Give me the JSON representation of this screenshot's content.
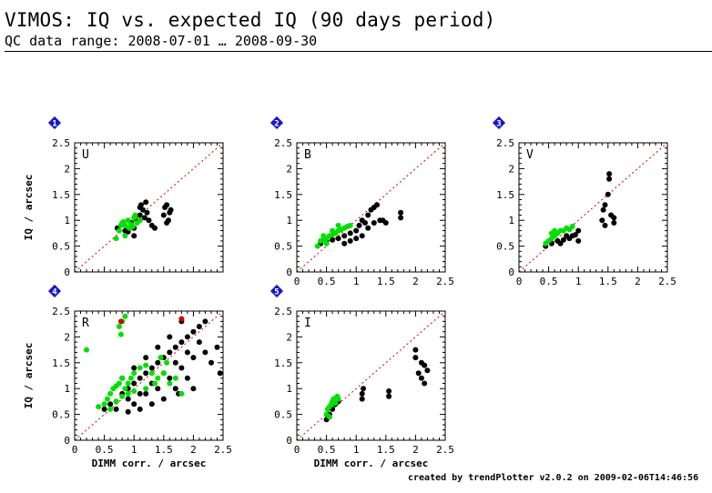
{
  "header": {
    "title": "VIMOS: IQ vs. expected IQ (90 days period)",
    "subtitle": "QC data range: 2008-07-01 … 2008-09-30"
  },
  "footer": "created by trendPlotter v2.0.2 on 2009-02-06T14:46:56",
  "colors": {
    "accent": "#00e000",
    "series_black": "#000000",
    "marker": "#1818c8",
    "reference": "#d00000"
  },
  "chart_data": [
    {
      "type": "scatter",
      "index": "1",
      "filter": "U",
      "xlabel": "",
      "ylabel": "IQ / arcsec",
      "xlim": [
        0,
        2.5
      ],
      "ylim": [
        0,
        2.5
      ],
      "xticks": [],
      "yticks": [
        "0",
        "0.5",
        "1",
        "1.5",
        "2",
        "2.5"
      ],
      "reference_line": "y = x",
      "series": [
        {
          "color": "#000000",
          "points": [
            [
              0.72,
              0.85
            ],
            [
              0.8,
              0.92
            ],
            [
              0.85,
              0.8
            ],
            [
              0.95,
              0.95
            ],
            [
              1.0,
              0.7
            ],
            [
              1.05,
              0.98
            ],
            [
              1.1,
              1.1
            ],
            [
              1.12,
              1.3
            ],
            [
              1.15,
              1.2
            ],
            [
              1.18,
              1.05
            ],
            [
              1.2,
              1.35
            ],
            [
              1.22,
              1.15
            ],
            [
              1.25,
              1.0
            ],
            [
              1.3,
              0.9
            ],
            [
              1.35,
              0.85
            ],
            [
              1.5,
              1.1
            ],
            [
              1.52,
              1.25
            ],
            [
              1.55,
              1.3
            ],
            [
              1.58,
              1.0
            ],
            [
              1.6,
              1.15
            ],
            [
              1.62,
              1.2
            ],
            [
              1.55,
              0.95
            ],
            [
              1.0,
              0.85
            ],
            [
              0.9,
              0.78
            ],
            [
              1.1,
              1.25
            ]
          ]
        },
        {
          "color": "#00e000",
          "points": [
            [
              0.75,
              0.8
            ],
            [
              0.78,
              0.9
            ],
            [
              0.8,
              0.95
            ],
            [
              0.85,
              0.9
            ],
            [
              0.9,
              1.0
            ],
            [
              0.92,
              0.85
            ],
            [
              0.95,
              0.92
            ],
            [
              1.0,
              1.05
            ],
            [
              1.05,
              0.95
            ],
            [
              1.1,
              1.0
            ],
            [
              0.85,
              0.7
            ],
            [
              0.7,
              0.65
            ],
            [
              0.82,
              0.97
            ],
            [
              0.98,
              0.88
            ],
            [
              1.02,
              1.1
            ]
          ]
        }
      ]
    },
    {
      "type": "scatter",
      "index": "2",
      "filter": "B",
      "xlabel": "",
      "ylabel": "",
      "xlim": [
        0,
        2.5
      ],
      "ylim": [
        0,
        2.5
      ],
      "xticks": [
        "0",
        "0.5",
        "1",
        "1.5",
        "2",
        "2.5"
      ],
      "yticks": [
        "0",
        "0.5",
        "1",
        "1.5",
        "2",
        "2.5"
      ],
      "reference_line": "y = x",
      "series": [
        {
          "color": "#000000",
          "points": [
            [
              0.4,
              0.55
            ],
            [
              0.5,
              0.6
            ],
            [
              0.6,
              0.62
            ],
            [
              0.7,
              0.65
            ],
            [
              0.8,
              0.7
            ],
            [
              0.9,
              0.75
            ],
            [
              1.0,
              0.8
            ],
            [
              1.05,
              0.9
            ],
            [
              1.1,
              1.0
            ],
            [
              1.15,
              0.95
            ],
            [
              1.2,
              1.1
            ],
            [
              1.25,
              1.2
            ],
            [
              1.3,
              1.25
            ],
            [
              1.35,
              1.3
            ],
            [
              1.2,
              0.85
            ],
            [
              1.3,
              0.95
            ],
            [
              1.4,
              1.0
            ],
            [
              1.1,
              0.7
            ],
            [
              1.0,
              0.65
            ],
            [
              0.9,
              0.6
            ],
            [
              1.75,
              1.05
            ],
            [
              1.75,
              1.15
            ],
            [
              1.45,
              1.0
            ],
            [
              1.5,
              0.95
            ],
            [
              0.8,
              0.55
            ]
          ]
        },
        {
          "color": "#00e000",
          "points": [
            [
              0.35,
              0.5
            ],
            [
              0.4,
              0.6
            ],
            [
              0.45,
              0.62
            ],
            [
              0.5,
              0.65
            ],
            [
              0.55,
              0.7
            ],
            [
              0.6,
              0.72
            ],
            [
              0.65,
              0.75
            ],
            [
              0.7,
              0.8
            ],
            [
              0.75,
              0.82
            ],
            [
              0.8,
              0.85
            ],
            [
              0.85,
              0.88
            ],
            [
              0.9,
              0.9
            ],
            [
              0.5,
              0.55
            ],
            [
              0.6,
              0.8
            ],
            [
              0.7,
              0.9
            ],
            [
              0.45,
              0.7
            ]
          ]
        }
      ]
    },
    {
      "type": "scatter",
      "index": "3",
      "filter": "V",
      "xlabel": "",
      "ylabel": "",
      "xlim": [
        0,
        2.5
      ],
      "ylim": [
        0,
        2.5
      ],
      "xticks": [
        "0",
        "0.5",
        "1",
        "1.5",
        "2",
        "2.5"
      ],
      "yticks": [
        "0",
        "0.5",
        "1",
        "1.5",
        "2",
        "2.5"
      ],
      "reference_line": "y = x",
      "series": [
        {
          "color": "#000000",
          "points": [
            [
              0.45,
              0.5
            ],
            [
              0.55,
              0.55
            ],
            [
              0.65,
              0.6
            ],
            [
              0.75,
              0.62
            ],
            [
              0.85,
              0.65
            ],
            [
              0.9,
              0.7
            ],
            [
              0.95,
              0.72
            ],
            [
              1.0,
              0.8
            ],
            [
              0.8,
              0.7
            ],
            [
              0.7,
              0.55
            ],
            [
              1.4,
              1.0
            ],
            [
              1.42,
              1.2
            ],
            [
              1.45,
              1.3
            ],
            [
              1.5,
              1.5
            ],
            [
              1.52,
              1.8
            ],
            [
              1.52,
              1.9
            ],
            [
              1.55,
              1.1
            ],
            [
              1.6,
              1.05
            ],
            [
              1.6,
              0.95
            ],
            [
              1.45,
              0.9
            ],
            [
              1.0,
              0.6
            ]
          ]
        },
        {
          "color": "#00e000",
          "points": [
            [
              0.45,
              0.55
            ],
            [
              0.5,
              0.6
            ],
            [
              0.55,
              0.65
            ],
            [
              0.6,
              0.7
            ],
            [
              0.65,
              0.75
            ],
            [
              0.7,
              0.8
            ],
            [
              0.75,
              0.8
            ],
            [
              0.8,
              0.85
            ],
            [
              0.85,
              0.82
            ],
            [
              0.9,
              0.88
            ],
            [
              0.55,
              0.75
            ],
            [
              0.6,
              0.8
            ]
          ]
        }
      ]
    },
    {
      "type": "scatter",
      "index": "4",
      "filter": "R",
      "xlabel": "DIMM corr. / arcsec",
      "ylabel": "IQ / arcsec",
      "xlim": [
        0,
        2.5
      ],
      "ylim": [
        0,
        2.5
      ],
      "xticks": [
        "0",
        "0.5",
        "1",
        "1.5",
        "2",
        "2.5"
      ],
      "yticks": [
        "0",
        "0.5",
        "1",
        "1.5",
        "2",
        "2.5"
      ],
      "reference_line": "y = x",
      "series": [
        {
          "color": "#000000",
          "points": [
            [
              0.5,
              0.6
            ],
            [
              0.6,
              0.7
            ],
            [
              0.7,
              0.75
            ],
            [
              0.8,
              0.9
            ],
            [
              0.9,
              1.0
            ],
            [
              1.0,
              1.1
            ],
            [
              1.1,
              1.2
            ],
            [
              1.2,
              1.3
            ],
            [
              1.3,
              1.4
            ],
            [
              1.4,
              1.5
            ],
            [
              1.5,
              1.6
            ],
            [
              1.6,
              1.7
            ],
            [
              1.7,
              1.8
            ],
            [
              1.8,
              1.9
            ],
            [
              1.9,
              2.0
            ],
            [
              2.0,
              2.1
            ],
            [
              2.1,
              2.2
            ],
            [
              2.2,
              2.3
            ],
            [
              1.0,
              0.7
            ],
            [
              1.2,
              0.9
            ],
            [
              1.4,
              1.0
            ],
            [
              1.6,
              1.2
            ],
            [
              1.8,
              1.4
            ],
            [
              2.0,
              1.6
            ],
            [
              2.2,
              1.7
            ],
            [
              2.4,
              1.8
            ],
            [
              2.45,
              1.3
            ],
            [
              2.3,
              1.5
            ],
            [
              1.9,
              1.2
            ],
            [
              1.7,
              1.0
            ],
            [
              1.5,
              0.8
            ],
            [
              1.3,
              0.7
            ],
            [
              1.1,
              0.6
            ],
            [
              0.9,
              0.55
            ],
            [
              0.7,
              0.6
            ],
            [
              1.0,
              1.4
            ],
            [
              1.2,
              1.6
            ],
            [
              1.4,
              1.8
            ],
            [
              1.6,
              2.0
            ],
            [
              1.8,
              2.3
            ],
            [
              0.8,
              1.2
            ],
            [
              0.9,
              0.8
            ],
            [
              1.1,
              0.9
            ],
            [
              1.3,
              1.1
            ],
            [
              1.5,
              1.3
            ],
            [
              1.7,
              1.5
            ],
            [
              1.9,
              1.7
            ],
            [
              2.1,
              1.9
            ],
            [
              1.75,
              0.9
            ],
            [
              2.0,
              1.0
            ]
          ]
        },
        {
          "color": "#00e000",
          "points": [
            [
              0.4,
              0.65
            ],
            [
              0.5,
              0.7
            ],
            [
              0.55,
              0.8
            ],
            [
              0.6,
              0.9
            ],
            [
              0.65,
              1.0
            ],
            [
              0.7,
              1.05
            ],
            [
              0.75,
              1.1
            ],
            [
              0.8,
              1.2
            ],
            [
              0.85,
              1.0
            ],
            [
              0.9,
              1.1
            ],
            [
              0.95,
              1.2
            ],
            [
              1.0,
              1.3
            ],
            [
              1.1,
              1.4
            ],
            [
              1.2,
              1.45
            ],
            [
              1.3,
              1.3
            ],
            [
              1.4,
              1.2
            ],
            [
              1.5,
              1.3
            ],
            [
              1.6,
              1.1
            ],
            [
              1.7,
              1.2
            ],
            [
              1.8,
              0.9
            ],
            [
              0.7,
              0.75
            ],
            [
              0.8,
              0.85
            ],
            [
              0.9,
              0.9
            ],
            [
              1.0,
              0.95
            ],
            [
              0.75,
              2.2
            ],
            [
              0.8,
              2.3
            ],
            [
              0.85,
              2.4
            ],
            [
              0.78,
              2.05
            ],
            [
              0.2,
              1.75
            ],
            [
              0.6,
              0.6
            ],
            [
              1.2,
              1.0
            ],
            [
              1.35,
              1.1
            ],
            [
              1.45,
              1.6
            ],
            [
              1.55,
              1.5
            ]
          ]
        },
        {
          "color": "#d00000",
          "points": [
            [
              0.78,
              2.3
            ],
            [
              1.8,
              2.35
            ]
          ]
        }
      ]
    },
    {
      "type": "scatter",
      "index": "5",
      "filter": "I",
      "xlabel": "DIMM corr. / arcsec",
      "ylabel": "",
      "xlim": [
        0,
        2.5
      ],
      "ylim": [
        0,
        2.5
      ],
      "xticks": [
        "0",
        "0.5",
        "1",
        "1.5",
        "2",
        "2.5"
      ],
      "yticks": [
        "0",
        "0.5",
        "1",
        "1.5",
        "2",
        "2.5"
      ],
      "reference_line": "y = x",
      "series": [
        {
          "color": "#000000",
          "points": [
            [
              0.5,
              0.4
            ],
            [
              0.55,
              0.5
            ],
            [
              0.6,
              0.6
            ],
            [
              0.65,
              0.7
            ],
            [
              0.7,
              0.75
            ],
            [
              1.1,
              0.8
            ],
            [
              1.1,
              0.9
            ],
            [
              1.12,
              1.0
            ],
            [
              1.55,
              0.85
            ],
            [
              1.55,
              0.95
            ],
            [
              2.0,
              1.6
            ],
            [
              2.0,
              1.75
            ],
            [
              2.05,
              1.3
            ],
            [
              2.1,
              1.5
            ],
            [
              2.1,
              1.2
            ],
            [
              2.15,
              1.45
            ],
            [
              2.2,
              1.35
            ],
            [
              2.15,
              1.1
            ]
          ]
        },
        {
          "color": "#00e000",
          "points": [
            [
              0.5,
              0.5
            ],
            [
              0.52,
              0.6
            ],
            [
              0.55,
              0.65
            ],
            [
              0.58,
              0.7
            ],
            [
              0.6,
              0.75
            ],
            [
              0.62,
              0.8
            ],
            [
              0.65,
              0.72
            ],
            [
              0.68,
              0.85
            ],
            [
              0.7,
              0.8
            ],
            [
              0.55,
              0.45
            ]
          ]
        }
      ]
    }
  ]
}
